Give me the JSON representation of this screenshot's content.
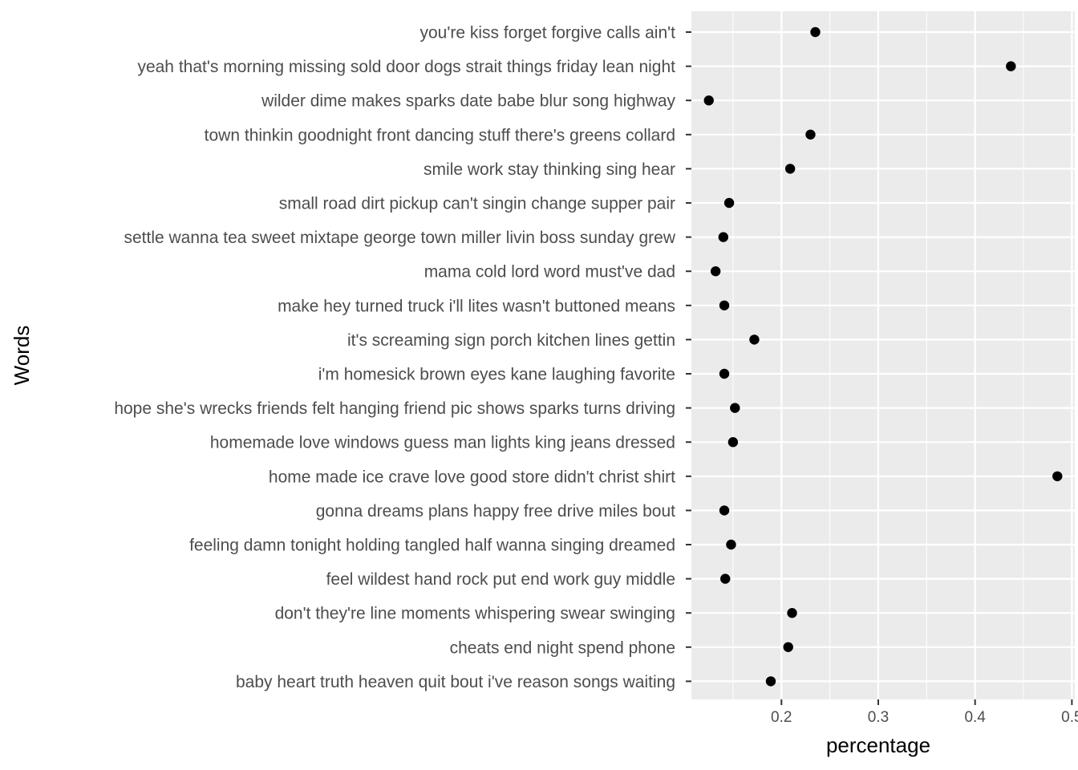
{
  "chart_data": {
    "type": "scatter",
    "xlabel": "percentage",
    "ylabel": "Words",
    "xlim": [
      0.107,
      0.503
    ],
    "x_ticks": [
      0.2,
      0.3,
      0.4,
      0.5
    ],
    "x_tick_labels": [
      "0.2",
      "0.3",
      "0.4",
      "0.5"
    ],
    "grid": true,
    "categories": [
      "you're kiss forget forgive calls ain't",
      "yeah that's morning missing sold door dogs strait things friday lean night",
      "wilder dime makes sparks date babe blur song highway",
      "town thinkin goodnight front dancing stuff there's greens collard",
      "smile work stay thinking sing hear",
      "small road dirt pickup can't singin change supper pair",
      "settle wanna tea sweet mixtape george town miller livin boss sunday grew",
      "mama cold lord word must've dad",
      "make hey turned truck i'll lites wasn't buttoned means",
      "it's screaming sign porch kitchen lines gettin",
      "i'm homesick brown eyes kane laughing favorite",
      "hope she's wrecks friends felt hanging friend pic shows sparks turns driving",
      "homemade love windows guess man lights king jeans dressed",
      "home made ice crave love good store didn't christ shirt",
      "gonna dreams plans happy free drive miles bout",
      "feeling damn tonight holding tangled half wanna singing dreamed",
      "feel wildest hand rock put end work guy middle",
      "don't they're line moments whispering swear swinging",
      "cheats end night spend phone",
      "baby heart truth heaven quit bout i've reason songs waiting"
    ],
    "values": [
      0.235,
      0.437,
      0.125,
      0.23,
      0.209,
      0.146,
      0.14,
      0.132,
      0.141,
      0.172,
      0.141,
      0.152,
      0.15,
      0.485,
      0.141,
      0.148,
      0.142,
      0.211,
      0.207,
      0.189
    ],
    "colors": {
      "panel": "#ebebeb",
      "grid": "#ffffff",
      "point": "#000000",
      "tick": "#333333",
      "label": "#4d4d4d"
    }
  }
}
